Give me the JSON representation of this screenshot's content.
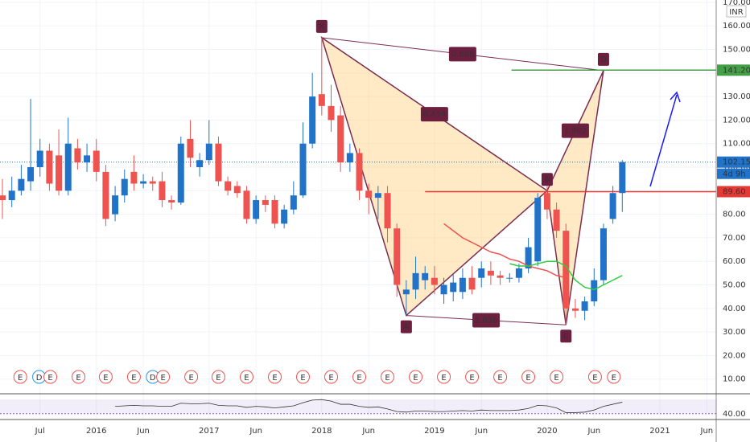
{
  "chart_data": {
    "type": "candlestick",
    "currency": "INR",
    "countdown": "4d 9h",
    "xlim": [
      -0.26,
      76
    ],
    "xticks": [
      {
        "value": 4,
        "label": "Jul"
      },
      {
        "value": 10,
        "label": "2016"
      },
      {
        "value": 15,
        "label": "Jun"
      },
      {
        "value": 22,
        "label": "2017"
      },
      {
        "value": 27,
        "label": "Jun"
      },
      {
        "value": 34,
        "label": "2018"
      },
      {
        "value": 39,
        "label": "Jun"
      },
      {
        "value": 46,
        "label": "2019"
      },
      {
        "value": 51,
        "label": "Jun"
      },
      {
        "value": 58,
        "label": "2020"
      },
      {
        "value": 63,
        "label": "Jun"
      },
      {
        "value": 70,
        "label": "2021"
      },
      {
        "value": 75,
        "label": "Jun"
      }
    ],
    "ylim": [
      3.75,
      171
    ],
    "yticks": [
      {
        "value": 10,
        "label": "10.00"
      },
      {
        "value": 20,
        "label": "20.00"
      },
      {
        "value": 30,
        "label": "30.00"
      },
      {
        "value": 40,
        "label": "40.00"
      },
      {
        "value": 50,
        "label": "50.00"
      },
      {
        "value": 60,
        "label": "60.00"
      },
      {
        "value": 70,
        "label": "70.00"
      },
      {
        "value": 80,
        "label": "80.00"
      },
      {
        "value": 90,
        "label": "90.00"
      },
      {
        "value": 100,
        "label": "100.00"
      },
      {
        "value": 110,
        "label": "110.00"
      },
      {
        "value": 120,
        "label": "120.00"
      },
      {
        "value": 130,
        "label": "130.00"
      },
      {
        "value": 140,
        "label": "140.00"
      },
      {
        "value": 150,
        "label": "150.00"
      },
      {
        "value": 160,
        "label": "160.00"
      },
      {
        "value": 170,
        "label": "170.00"
      }
    ],
    "up_color": "#2173c9",
    "down_color": "#ef5350",
    "open": [
      88,
      86,
      90,
      94,
      100,
      107,
      105,
      90,
      108,
      102,
      107,
      98,
      80,
      88,
      98,
      93,
      94,
      94,
      86,
      85,
      112,
      100,
      103,
      110,
      94,
      92,
      90,
      78,
      86,
      86,
      76,
      82,
      88,
      110,
      131,
      126,
      122,
      102,
      106,
      90,
      87,
      89,
      74,
      46,
      48,
      52,
      53,
      46,
      47,
      47,
      53,
      53,
      56,
      54,
      53,
      53,
      57,
      60,
      89,
      82,
      73,
      40,
      39,
      43,
      52,
      78,
      89
    ],
    "high": [
      95,
      96,
      101,
      129,
      112,
      110,
      116,
      121,
      112,
      110,
      112,
      101,
      92,
      99,
      105,
      97,
      96,
      98,
      88,
      113,
      120,
      106,
      120,
      113,
      96,
      94,
      92,
      88,
      88,
      88,
      84,
      94,
      119,
      140,
      155,
      135,
      126,
      110,
      108,
      93,
      92,
      92,
      76,
      52,
      62,
      58,
      58,
      53,
      55,
      57,
      58,
      60,
      60,
      56,
      55,
      59,
      70,
      89,
      92,
      85,
      76,
      44,
      45,
      57,
      76,
      92,
      103
    ],
    "low": [
      78,
      83,
      88,
      90,
      96,
      90,
      88,
      88,
      99,
      98,
      94,
      75,
      77,
      85,
      90,
      91,
      90,
      83,
      82,
      84,
      100,
      96,
      101,
      92,
      88,
      87,
      76,
      76,
      81,
      74,
      74,
      80,
      87,
      108,
      122,
      115,
      98,
      98,
      86,
      80,
      78,
      68,
      45,
      37,
      44,
      48,
      46,
      42,
      43,
      44,
      46,
      49,
      50,
      50,
      51,
      51,
      55,
      58,
      78,
      70,
      33,
      36,
      35,
      41,
      50,
      76,
      81
    ],
    "close": [
      86,
      90,
      95,
      100,
      107,
      93,
      90,
      110,
      102,
      105,
      98,
      78,
      88,
      95,
      93,
      94,
      93,
      86,
      85,
      110,
      104,
      103,
      110,
      94,
      90,
      89,
      78,
      86,
      84,
      76,
      82,
      88,
      110,
      130,
      126,
      120,
      102,
      106,
      90,
      87,
      89,
      74,
      50,
      48,
      55,
      55,
      50,
      50,
      51,
      53,
      48,
      57,
      54,
      53,
      53,
      57,
      66,
      87,
      82,
      73,
      40,
      39,
      43,
      52,
      74,
      89,
      102.15
    ],
    "overlays": [
      {
        "color": "#f05050",
        "x": [
          47,
          48,
          49,
          50,
          51,
          52,
          53,
          54,
          55,
          56,
          57,
          58,
          59,
          60
        ],
        "values": [
          76,
          73,
          70,
          68,
          66,
          64,
          63,
          61,
          60,
          58,
          57,
          56,
          54,
          53
        ]
      },
      {
        "color": "#2ecc40",
        "x": [
          54,
          55,
          56,
          57,
          58,
          59,
          60,
          61,
          62,
          63,
          64,
          65,
          66
        ],
        "values": [
          59,
          58,
          58,
          59,
          60,
          60,
          58,
          52,
          49,
          48,
          50,
          52,
          54
        ]
      }
    ],
    "pattern": [
      {
        "label": "X",
        "x": 34,
        "value": 155
      },
      {
        "label": "A",
        "x": 43,
        "value": 37
      },
      {
        "label": "B",
        "x": 58,
        "value": 90
      },
      {
        "label": "C",
        "x": 60,
        "value": 33
      },
      {
        "label": "D",
        "x": 64,
        "value": 141
      }
    ],
    "ratios": [
      {
        "label": "0.886",
        "from": 0,
        "to": 4
      },
      {
        "label": "0.454",
        "from": 0,
        "to": 2
      },
      {
        "label": "1.902",
        "from": 2,
        "to": 4
      },
      {
        "label": "1.056",
        "from": 1,
        "to": 3
      }
    ],
    "levels": [
      {
        "value": 141.2,
        "label": "141.20",
        "color": "#43a047",
        "x": 54.2
      },
      {
        "value": 89.6,
        "label": "89.60",
        "color": "#e53935",
        "x": 45
      }
    ],
    "last_price": {
      "value": 102.15,
      "label": "102.15",
      "color": "#2173c9"
    },
    "events": [
      {
        "label": "E",
        "x": 1.9
      },
      {
        "label": "D",
        "x": 3.9
      },
      {
        "label": "E",
        "x": 5.1
      },
      {
        "label": "E",
        "x": 8.1
      },
      {
        "label": "E",
        "x": 11
      },
      {
        "label": "E",
        "x": 14
      },
      {
        "label": "D",
        "x": 16
      },
      {
        "label": "E",
        "x": 17.1
      },
      {
        "label": "E",
        "x": 20.1
      },
      {
        "label": "E",
        "x": 23
      },
      {
        "label": "E",
        "x": 26
      },
      {
        "label": "E",
        "x": 29
      },
      {
        "label": "E",
        "x": 32
      },
      {
        "label": "E",
        "x": 35
      },
      {
        "label": "E",
        "x": 38
      },
      {
        "label": "E",
        "x": 41
      },
      {
        "label": "E",
        "x": 44
      },
      {
        "label": "E",
        "x": 47
      },
      {
        "label": "E",
        "x": 50
      },
      {
        "label": "E",
        "x": 53
      },
      {
        "label": "E",
        "x": 56
      },
      {
        "label": "E",
        "x": 59
      },
      {
        "label": "E",
        "x": 63.1
      },
      {
        "label": "E",
        "x": 65.1
      }
    ],
    "rsi": {
      "ylim": [
        35,
        75
      ],
      "yticks": [
        {
          "value": 40,
          "label": "40.00"
        }
      ],
      "color": "#333",
      "values": [
        null,
        null,
        null,
        null,
        null,
        null,
        null,
        null,
        null,
        null,
        null,
        null,
        54,
        55,
        56,
        55,
        55,
        54,
        54,
        60,
        59,
        59,
        60,
        56,
        55,
        55,
        52,
        54,
        53,
        51,
        53,
        55,
        61,
        66,
        67,
        64,
        58,
        58,
        54,
        52,
        53,
        49,
        44,
        43,
        45,
        45,
        44,
        44,
        45,
        46,
        45,
        47,
        46,
        46,
        46,
        47,
        50,
        56,
        55,
        51,
        42,
        42,
        43,
        47,
        54,
        58,
        62
      ]
    }
  }
}
